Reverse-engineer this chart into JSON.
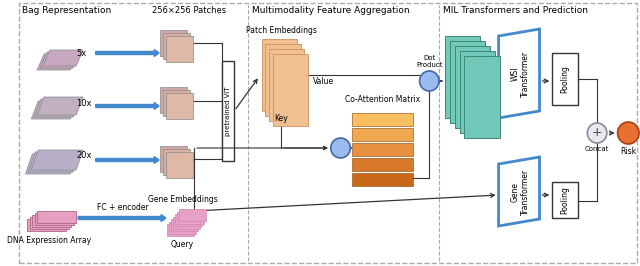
{
  "fig_width": 6.4,
  "fig_height": 2.66,
  "dpi": 100,
  "bg_color": "#ffffff",
  "section_titles": [
    "Bag Representation",
    "Multimodality Feature Aggregation",
    "MIL Transformers and Prediction"
  ],
  "label_patches": "256×256 Patches",
  "label_pretrained": "pretrained ViT",
  "label_patch_emb": "Patch Embeddings",
  "label_key": "Key",
  "label_value": "Value",
  "label_dot_product": "Dot\nProduct",
  "label_co_attention": "Co-Attention Matrix",
  "label_gene_emb": "Gene Embeddings",
  "label_fc": "FC + encoder",
  "label_query": "Query",
  "label_dna": "DNA Expression Array",
  "label_wsi_transformer": "WSI\nTransformer",
  "label_gene_transformer": "Gene\nTransformer",
  "label_pooling1": "Pooling",
  "label_pooling2": "Pooling",
  "label_concat": "Concat",
  "label_risk": "Risk",
  "color_arrow_blue": "#4488cc",
  "color_arrow_black": "#333333",
  "color_circle_blue": "#99bbee",
  "color_circle_orange": "#e87030",
  "color_dashed_border": "#aaaaaa",
  "color_patch_emb": "#f0c090",
  "color_gene_emb": "#e8a0c8",
  "color_teal": "#70c8b8",
  "color_wsi_frame": "#4488cc"
}
